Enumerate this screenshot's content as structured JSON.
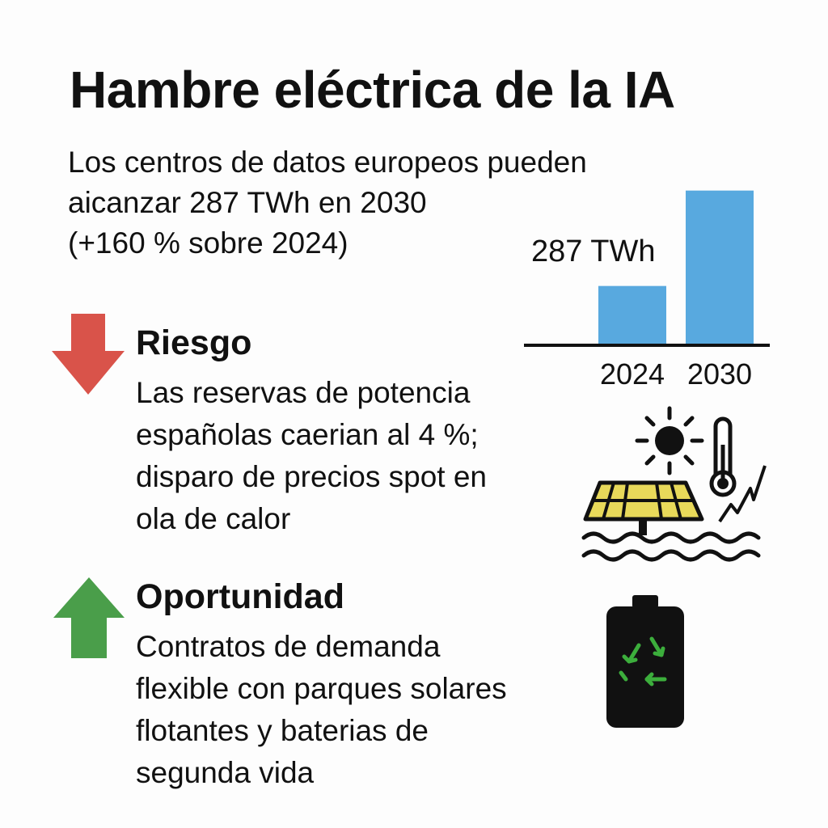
{
  "title": "Hambre eléctrica de la IA",
  "subtitle": {
    "lines": [
      "Los centros de datos europeos pueden",
      "aicanzar 287 TWh en 2030",
      "(+160 % sobre 2024)"
    ]
  },
  "chart_data": {
    "type": "bar",
    "categories": [
      "2024",
      "2030"
    ],
    "values": [
      110,
      287
    ],
    "value_label": "287 TWh",
    "ylim": [
      0,
      300
    ],
    "color": "#58a9df"
  },
  "risk": {
    "title": "Riesgo",
    "lines": [
      "Las reservas de potencia",
      "españolas caerian al 4 %;",
      "disparo de precios spot en",
      "ola de calor"
    ],
    "arrow_icon": "arrow-down-icon",
    "color": "#d9534a"
  },
  "opportunity": {
    "title": "Oportunidad",
    "lines": [
      "Contratos de demanda",
      "flexible con parques solares",
      "flotantes y baterias de",
      "segunda vida"
    ],
    "arrow_icon": "arrow-up-icon",
    "color": "#4a9e4a"
  },
  "icons": {
    "solar_scene": [
      "sun-icon",
      "thermometer-icon",
      "solar-panel-icon",
      "lightning-icon",
      "water-waves-icon"
    ],
    "battery": [
      "battery-icon",
      "recycle-icon"
    ],
    "solar_panel_color": "#e8d95a",
    "recycle_color": "#3cae3c"
  }
}
